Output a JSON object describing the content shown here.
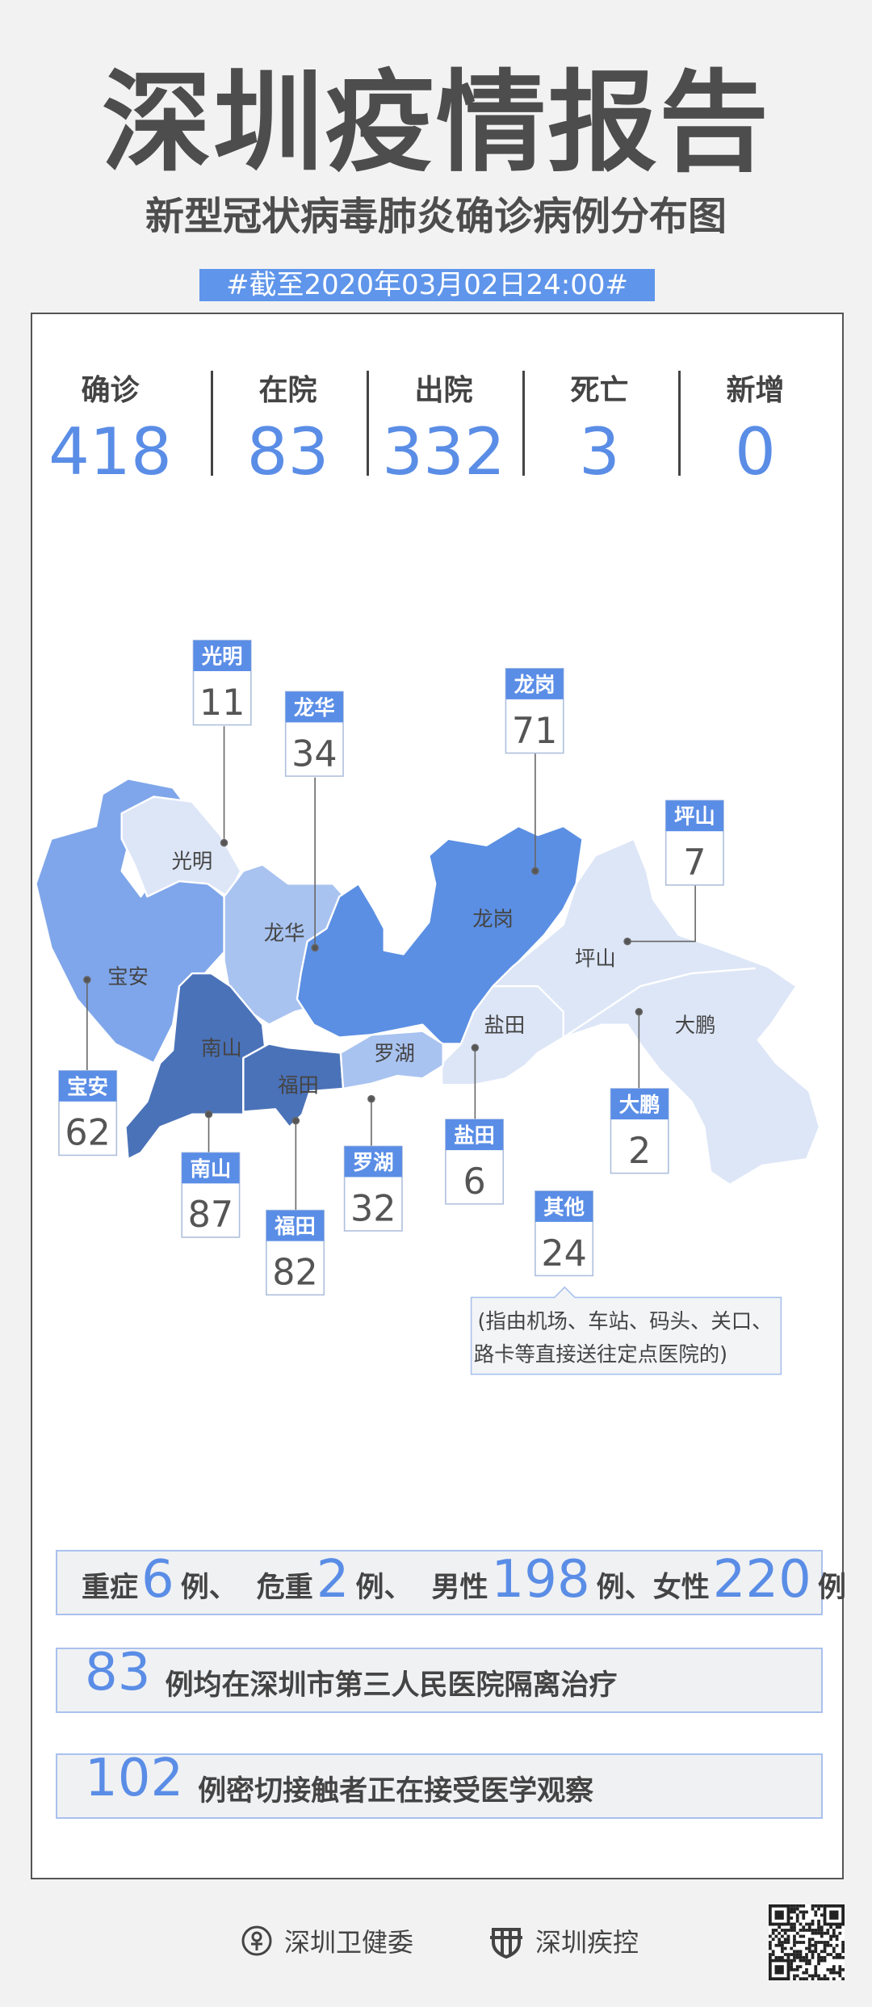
{
  "header": {
    "title": "深圳疫情报告",
    "subtitle": "新型冠状病毒肺炎确诊病例分布图",
    "date": "#截至2020年03月02日24:00#"
  },
  "stats": [
    {
      "label": "确诊",
      "value": "418"
    },
    {
      "label": "在院",
      "value": "83"
    },
    {
      "label": "出院",
      "value": "332"
    },
    {
      "label": "死亡",
      "value": "3"
    },
    {
      "label": "新增",
      "value": "0"
    }
  ],
  "colors": {
    "accent": "#5a8de6",
    "dark": "#4a72b8",
    "mid": "#5b8fe3",
    "light": "#a9c3f0",
    "pale": "#dde6f7"
  },
  "map": {
    "districts": [
      {
        "name": "光明",
        "count": "11"
      },
      {
        "name": "龙华",
        "count": "34"
      },
      {
        "name": "龙岗",
        "count": "71"
      },
      {
        "name": "坪山",
        "count": "7"
      },
      {
        "name": "宝安",
        "count": "62"
      },
      {
        "name": "南山",
        "count": "87"
      },
      {
        "name": "福田",
        "count": "82"
      },
      {
        "name": "罗湖",
        "count": "32"
      },
      {
        "name": "盐田",
        "count": "6"
      },
      {
        "name": "大鹏",
        "count": "2"
      },
      {
        "name": "其他",
        "count": "24"
      }
    ],
    "note_line1": "(指由机场、车站、码头、关口、",
    "note_line2": "路卡等直接送往定点医院的)"
  },
  "summary": {
    "row1": {
      "a_label": "重症",
      "a_value": "6",
      "a_unit": "例、",
      "b_label": "危重",
      "b_value": "2",
      "b_unit": "例、",
      "c_label": "男性",
      "c_value": "198",
      "c_unit": "例、",
      "d_label": "女性",
      "d_value": "220",
      "d_unit": "例"
    },
    "row2": {
      "value": "83",
      "text": "例均在深圳市第三人民医院隔离治疗"
    },
    "row3": {
      "value": "102",
      "text": "例密切接触者正在接受医学观察"
    }
  },
  "footer": {
    "org1": "深圳卫健委",
    "org2": "深圳疾控"
  }
}
